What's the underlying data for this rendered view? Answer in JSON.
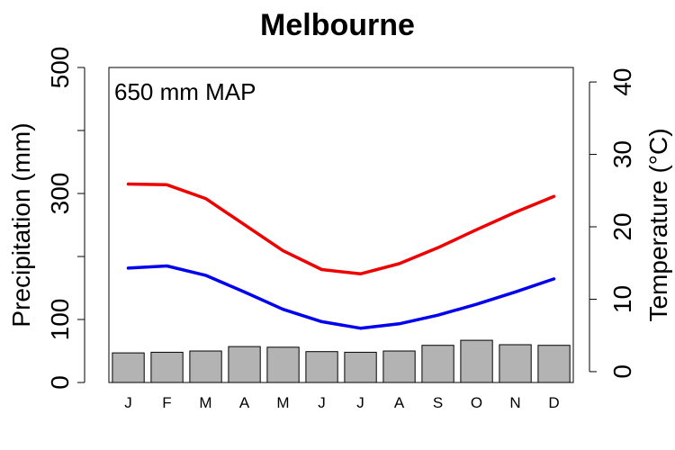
{
  "chart_data": {
    "type": "bar",
    "title": "Melbourne",
    "annotation": "650 mm MAP",
    "categories": [
      "J",
      "F",
      "M",
      "A",
      "M",
      "J",
      "J",
      "A",
      "S",
      "O",
      "N",
      "D"
    ],
    "precipitation": {
      "ylabel": "Precipitation (mm)",
      "ylim": [
        0,
        500
      ],
      "ticks": [
        0,
        100,
        300,
        500
      ],
      "values": [
        47,
        48,
        50,
        57,
        56,
        49,
        48,
        50,
        59,
        67,
        60,
        59
      ],
      "color": "#b3b3b3"
    },
    "temperature": {
      "ylabel": "Temperature (°C)",
      "ylim": [
        -1.5,
        42
      ],
      "ticks": [
        0,
        10,
        20,
        30,
        40
      ],
      "series": [
        {
          "values": [
            25.9,
            25.8,
            23.9,
            20.3,
            16.7,
            14.1,
            13.5,
            14.9,
            17.1,
            19.6,
            22.0,
            24.2
          ],
          "color": "#ee0000"
        },
        {
          "values": [
            14.3,
            14.6,
            13.3,
            11.0,
            8.6,
            6.9,
            6.0,
            6.6,
            7.8,
            9.3,
            11.0,
            12.8
          ],
          "color": "#0000ee"
        }
      ]
    },
    "grid": false
  }
}
